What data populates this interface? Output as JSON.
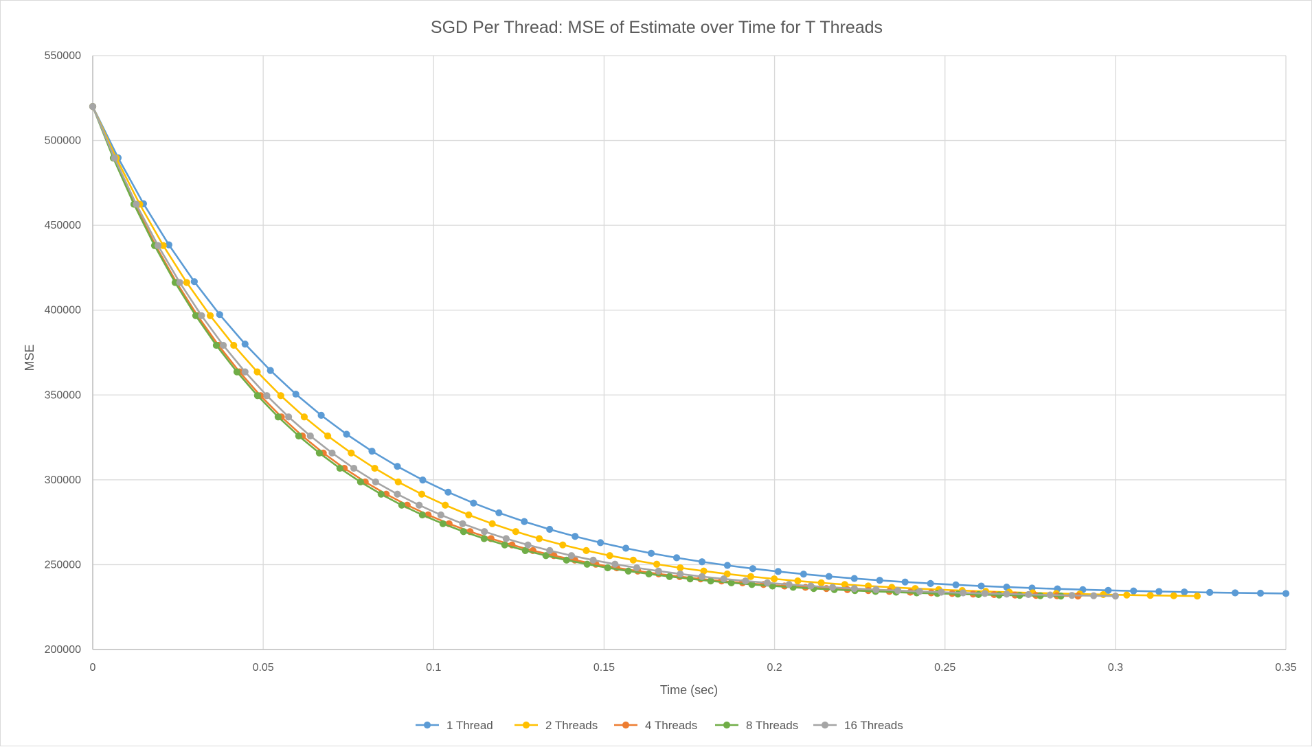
{
  "chart_data": {
    "type": "line",
    "title": "SGD Per Thread: MSE of Estimate over Time for T Threads",
    "xlabel": "Time (sec)",
    "ylabel": "MSE",
    "xlim": [
      0,
      0.35
    ],
    "ylim": [
      200000,
      550000
    ],
    "x_ticks": [
      "0",
      "0.05",
      "0.1",
      "0.15",
      "0.2",
      "0.25",
      "0.3",
      "0.35"
    ],
    "y_ticks": [
      "200000",
      "250000",
      "300000",
      "350000",
      "400000",
      "450000",
      "500000",
      "550000"
    ],
    "grid": true,
    "legend_position": "bottom",
    "series": [
      {
        "name": "1 Thread",
        "color": "#5b9bd5",
        "points": 48,
        "x_end": 0.35,
        "y_start": 520000,
        "y_end": 233000
      },
      {
        "name": "2 Threads",
        "color": "#ffc000",
        "points": 48,
        "x_end": 0.324,
        "y_start": 520000,
        "y_end": 231500
      },
      {
        "name": "4 Threads",
        "color": "#ed7d31",
        "points": 48,
        "x_end": 0.289,
        "y_start": 520000,
        "y_end": 231500
      },
      {
        "name": "8 Threads",
        "color": "#70ad47",
        "points": 48,
        "x_end": 0.284,
        "y_start": 520000,
        "y_end": 231500
      },
      {
        "name": "16 Threads",
        "color": "#a5a5a5",
        "points": 48,
        "x_end": 0.3,
        "y_start": 520000,
        "y_end": 231500
      }
    ]
  }
}
